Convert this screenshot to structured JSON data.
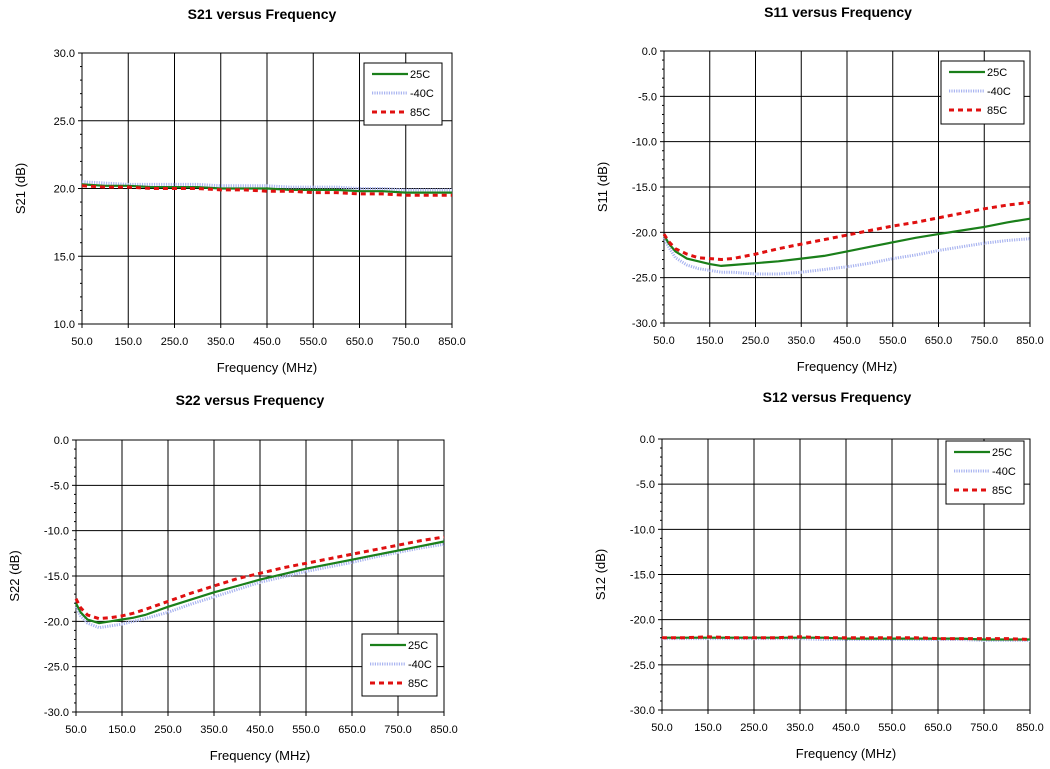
{
  "legend_series": [
    {
      "name": "25C",
      "color": "#1a7f1a",
      "style": "solid"
    },
    {
      "name": "-40C",
      "color": "#a9b4f0",
      "style": "dotted"
    },
    {
      "name": "85C",
      "color": "#e01010",
      "style": "dashed"
    }
  ],
  "chart_data": [
    {
      "type": "line",
      "title": "S21 versus Frequency",
      "xlabel": "Frequency (MHz)",
      "ylabel": "S21 (dB)",
      "xlim": [
        50,
        850
      ],
      "ylim": [
        10,
        30
      ],
      "xticks": [
        "50.0",
        "150.0",
        "250.0",
        "350.0",
        "450.0",
        "550.0",
        "650.0",
        "750.0",
        "850.0"
      ],
      "yticks": [
        "10.0",
        "15.0",
        "20.0",
        "25.0",
        "30.0"
      ],
      "grid": true,
      "legend_position": "top-right",
      "x": [
        50,
        100,
        150,
        200,
        250,
        300,
        350,
        400,
        450,
        500,
        550,
        600,
        650,
        700,
        750,
        800,
        850
      ],
      "series": [
        {
          "name": "25C",
          "values": [
            20.3,
            20.2,
            20.2,
            20.1,
            20.1,
            20.1,
            20.0,
            20.0,
            20.0,
            19.9,
            19.9,
            19.9,
            19.8,
            19.8,
            19.7,
            19.7,
            19.7
          ]
        },
        {
          "name": "-40C",
          "values": [
            20.5,
            20.4,
            20.3,
            20.3,
            20.3,
            20.3,
            20.2,
            20.2,
            20.2,
            20.1,
            20.1,
            20.1,
            20.0,
            20.0,
            19.9,
            19.9,
            19.9
          ]
        },
        {
          "name": "85C",
          "values": [
            20.2,
            20.1,
            20.1,
            20.0,
            20.0,
            20.0,
            19.9,
            19.9,
            19.8,
            19.8,
            19.7,
            19.7,
            19.6,
            19.6,
            19.5,
            19.5,
            19.5
          ]
        }
      ]
    },
    {
      "type": "line",
      "title": "S11 versus Frequency",
      "xlabel": "Frequency (MHz)",
      "ylabel": "S11 (dB)",
      "xlim": [
        50,
        850
      ],
      "ylim": [
        -30,
        0
      ],
      "xticks": [
        "50.0",
        "150.0",
        "250.0",
        "350.0",
        "450.0",
        "550.0",
        "650.0",
        "750.0",
        "850.0"
      ],
      "yticks": [
        "-30.0",
        "-25.0",
        "-20.0",
        "-15.0",
        "-10.0",
        "-5.0",
        "0.0"
      ],
      "grid": true,
      "legend_position": "top-right",
      "x": [
        50,
        60,
        75,
        100,
        125,
        150,
        175,
        200,
        250,
        300,
        350,
        400,
        450,
        500,
        550,
        600,
        650,
        700,
        750,
        800,
        850
      ],
      "series": [
        {
          "name": "25C",
          "values": [
            -20.3,
            -21.2,
            -22.1,
            -22.9,
            -23.2,
            -23.5,
            -23.7,
            -23.6,
            -23.4,
            -23.2,
            -22.9,
            -22.6,
            -22.1,
            -21.6,
            -21.1,
            -20.6,
            -20.2,
            -19.8,
            -19.4,
            -18.9,
            -18.5
          ]
        },
        {
          "name": "-40C",
          "values": [
            -20.6,
            -21.6,
            -22.8,
            -23.6,
            -24.0,
            -24.2,
            -24.4,
            -24.4,
            -24.6,
            -24.6,
            -24.4,
            -24.1,
            -23.8,
            -23.4,
            -22.9,
            -22.5,
            -22.0,
            -21.6,
            -21.2,
            -20.9,
            -20.7
          ]
        },
        {
          "name": "85C",
          "values": [
            -20.2,
            -21.0,
            -21.8,
            -22.4,
            -22.8,
            -22.9,
            -23.0,
            -22.9,
            -22.4,
            -21.8,
            -21.3,
            -20.8,
            -20.3,
            -19.8,
            -19.3,
            -18.9,
            -18.4,
            -17.9,
            -17.4,
            -17.0,
            -16.7
          ]
        }
      ]
    },
    {
      "type": "line",
      "title": "S22 versus Frequency",
      "xlabel": "Frequency (MHz)",
      "ylabel": "S22 (dB)",
      "xlim": [
        50,
        850
      ],
      "ylim": [
        -30,
        0
      ],
      "xticks": [
        "50.0",
        "150.0",
        "250.0",
        "350.0",
        "450.0",
        "550.0",
        "650.0",
        "750.0",
        "850.0"
      ],
      "yticks": [
        "-30.0",
        "-25.0",
        "-20.0",
        "-15.0",
        "-10.0",
        "-5.0",
        "0.0"
      ],
      "grid": true,
      "legend_position": "bottom-right",
      "x": [
        50,
        60,
        75,
        100,
        125,
        150,
        175,
        200,
        250,
        300,
        350,
        400,
        450,
        500,
        550,
        600,
        650,
        700,
        750,
        800,
        850
      ],
      "series": [
        {
          "name": "25C",
          "values": [
            -18.0,
            -19.0,
            -19.8,
            -20.2,
            -20.0,
            -19.8,
            -19.6,
            -19.3,
            -18.4,
            -17.6,
            -16.8,
            -16.1,
            -15.4,
            -14.8,
            -14.2,
            -13.7,
            -13.2,
            -12.7,
            -12.2,
            -11.7,
            -11.2
          ]
        },
        {
          "name": "-40C",
          "values": [
            -18.4,
            -19.4,
            -20.2,
            -20.7,
            -20.5,
            -20.3,
            -20.0,
            -19.7,
            -19.0,
            -18.1,
            -17.3,
            -16.5,
            -15.7,
            -15.1,
            -14.5,
            -14.0,
            -13.5,
            -12.9,
            -12.4,
            -11.9,
            -11.5
          ]
        },
        {
          "name": "85C",
          "values": [
            -17.5,
            -18.5,
            -19.3,
            -19.7,
            -19.6,
            -19.4,
            -19.1,
            -18.7,
            -17.8,
            -16.9,
            -16.1,
            -15.3,
            -14.7,
            -14.1,
            -13.6,
            -13.1,
            -12.6,
            -12.1,
            -11.6,
            -11.1,
            -10.7
          ]
        }
      ]
    },
    {
      "type": "line",
      "title": "S12 versus Frequency",
      "xlabel": "Frequency (MHz)",
      "ylabel": "S12 (dB)",
      "xlim": [
        50,
        850
      ],
      "ylim": [
        -30,
        0
      ],
      "xticks": [
        "50.0",
        "150.0",
        "250.0",
        "350.0",
        "450.0",
        "550.0",
        "650.0",
        "750.0",
        "850.0"
      ],
      "yticks": [
        "-30.0",
        "-25.0",
        "-20.0",
        "-15.0",
        "-10.0",
        "-5.0",
        "0.0"
      ],
      "grid": true,
      "legend_position": "top-right",
      "x": [
        50,
        100,
        150,
        200,
        250,
        300,
        350,
        400,
        450,
        500,
        550,
        600,
        650,
        700,
        750,
        800,
        850
      ],
      "series": [
        {
          "name": "25C",
          "values": [
            -22.0,
            -22.0,
            -22.0,
            -22.0,
            -22.0,
            -22.0,
            -22.0,
            -22.0,
            -22.1,
            -22.1,
            -22.1,
            -22.1,
            -22.1,
            -22.1,
            -22.2,
            -22.2,
            -22.2
          ]
        },
        {
          "name": "-40C",
          "values": [
            -22.1,
            -22.1,
            -22.1,
            -22.1,
            -22.1,
            -22.1,
            -22.1,
            -22.2,
            -22.2,
            -22.2,
            -22.2,
            -22.2,
            -22.2,
            -22.2,
            -22.3,
            -22.3,
            -22.3
          ]
        },
        {
          "name": "85C",
          "values": [
            -22.0,
            -22.0,
            -21.9,
            -22.0,
            -22.0,
            -22.0,
            -21.9,
            -22.0,
            -22.0,
            -22.0,
            -22.0,
            -22.0,
            -22.1,
            -22.1,
            -22.1,
            -22.1,
            -22.2
          ]
        }
      ]
    }
  ]
}
